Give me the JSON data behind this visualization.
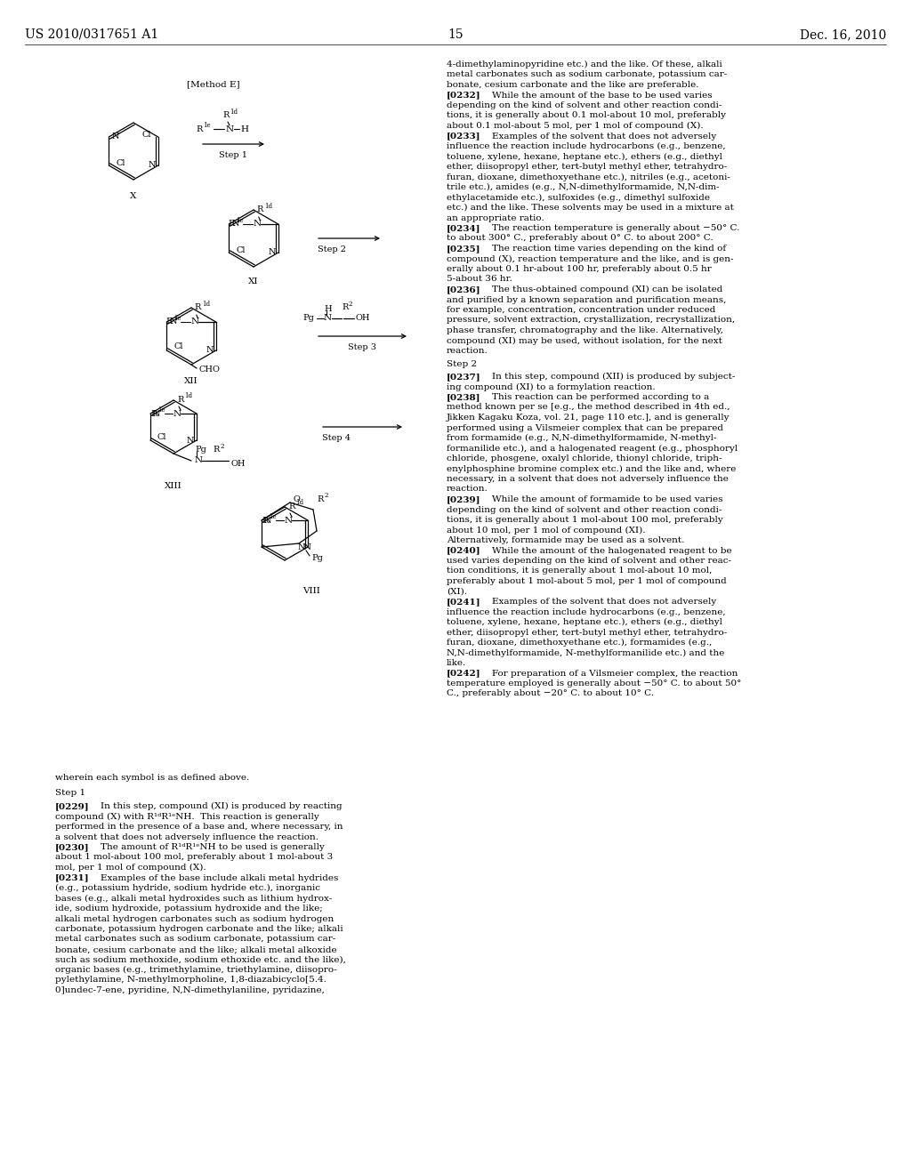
{
  "background": "#ffffff",
  "header_left": "US 2010/0317651 A1",
  "header_center": "15",
  "header_right": "Dec. 16, 2010",
  "right_paragraphs": [
    {
      "bold_tag": "",
      "text": "4-dimethylaminopyridine etc.) and the like. Of these, alkali metal carbonates such as sodium carbonate, potassium car-bonate, cesium carbonate and the like are preferable."
    },
    {
      "bold_tag": "[0232]",
      "text": "[0232] While the amount of the base to be used varies depending on the kind of solvent and other reaction condi-tions, it is generally about 0.1 mol-about 10 mol, preferably about 0.1 mol-about 5 mol, per 1 mol of compound (X)."
    },
    {
      "bold_tag": "[0233]",
      "text": "[0233] Examples of the solvent that does not adversely influence the reaction include hydrocarbons (e.g., benzene, toluene, xylene, hexane, heptane etc.), ethers (e.g., diethyl ether, diisopropyl ether, tert-butyl methyl ether, tetrahydro-furan, dioxane, dimethoxyethane etc.), nitriles (e.g., acetoni-trile etc.), amides (e.g., N,N-dimethylformamide, N,N-dim-ethylacetamide etc.), sulfoxides (e.g., dimethyl sulfoxide etc.) and the like. These solvents may be used in a mixture at an appropriate ratio."
    },
    {
      "bold_tag": "[0234]",
      "text": "[0234] The reaction temperature is generally about −50° C. to about 300° C., preferably about 0° C. to about 200° C."
    },
    {
      "bold_tag": "[0235]",
      "text": "[0235] The reaction time varies depending on the kind of compound (X), reaction temperature and the like, and is gen-erally about 0.1 hr-about 100 hr, preferably about 0.5 hr 5-about 36 hr."
    },
    {
      "bold_tag": "[0236]",
      "text": "[0236] The thus-obtained compound (XI) can be isolated and purified by a known separation and purification means, for example, concentration, concentration under reduced pressure, solvent extraction, crystallization, recrystallization, phase transfer, chromatography and the like. Alternatively, compound (XI) may be used, without isolation, for the next reaction."
    },
    {
      "bold_tag": "Step 2",
      "text": "Step 2"
    },
    {
      "bold_tag": "[0237]",
      "text": "[0237] In this step, compound (XII) is produced by subject-ing compound (XI) to a formylation reaction."
    },
    {
      "bold_tag": "[0238]",
      "text": "[0238] This reaction can be performed according to a method known per se [e.g., the method described in 4th ed., Jikken Kagaku Koza, vol. 21, page 110 etc.], and is generally performed using a Vilsmeier complex that can be prepared from formamide (e.g., N,N-dimethylformamide, N-methyl-formanilide etc.), and a halogenated reagent (e.g., phosphoryl chloride, phosgene, oxalyl chloride, thionyl chloride, triph-enylphosphine bromine complex etc.) and the like and, where necessary, in a solvent that does not adversely influence the reaction."
    },
    {
      "bold_tag": "[0239]",
      "text": "[0239] While the amount of formamide to be used varies depending on the kind of solvent and other reaction condi-tions, it is generally about 1 mol-about 100 mol, preferably about 10 mol, per 1 mol of compound (XI). Alternatively, formamide may be used as a solvent."
    },
    {
      "bold_tag": "[0240]",
      "text": "[0240] While the amount of the halogenated reagent to be used varies depending on the kind of solvent and other reac-tion conditions, it is generally about 1 mol-about 10 mol, preferably about 1 mol-about 5 mol, per 1 mol of compound (XI)."
    },
    {
      "bold_tag": "[0241]",
      "text": "[0241] Examples of the solvent that does not adversely influence the reaction include hydrocarbons (e.g., benzene, toluene, xylene, hexane, heptane etc.), ethers (e.g., diethyl ether, diisopropyl ether, tert-butyl methyl ether, tetrahydro-furan, dioxane, dimethoxyethane etc.), formamides (e.g., N,N-dimethylformamide, N-methylformanilide etc.) and the like."
    },
    {
      "bold_tag": "[0242]",
      "text": "[0242] For preparation of a Vilsmeier complex, the reaction temperature employed is generally about −50° C. to about 50° C., preferably about −20° C. to about 10° C."
    }
  ],
  "bottom_paragraphs": [
    {
      "bold_tag": "",
      "text": "wherein each symbol is as defined above."
    },
    {
      "bold_tag": "Step 1",
      "text": "Step 1"
    },
    {
      "bold_tag": "[0229]",
      "text": "[0229] In this step, compound (XI) is produced by reacting compound (X) with R¹ᵈR¹ᵉNH. This reaction is generally performed in the presence of a base and, where necessary, in a solvent that does not adversely influence the reaction."
    },
    {
      "bold_tag": "[0230]",
      "text": "[0230] The amount of R¹ᵈR¹ᵉNH to be used is generally about 1 mol-about 100 mol, preferably about 1 mol-about 3 mol, per 1 mol of compound (X)."
    },
    {
      "bold_tag": "[0231]",
      "text": "[0231] Examples of the base include alkali metal hydrides (e.g., potassium hydride, sodium hydride etc.), inorganic bases (e.g., alkali metal hydroxides such as lithium hydrox-ide, sodium hydroxide, potassium hydroxide and the like; alkali metal hydrogen carbonates such as sodium hydrogen carbonate, potassium hydrogen carbonate and the like; alkali metal carbonates such as sodium carbonate, potassium car-bonate, cesium carbonate and the like; alkali metal alkoxide such as sodium methoxide, sodium ethoxide etc. and the like), organic bases (e.g., trimethylamine, triethylamine, diisopro-pylethylamine, N-methylmorpholine, 1,8-diazabicyclo[5.4. 0]undec-7-ene, pyridine, N,N-dimethylaniline, pyridazine,"
    }
  ]
}
